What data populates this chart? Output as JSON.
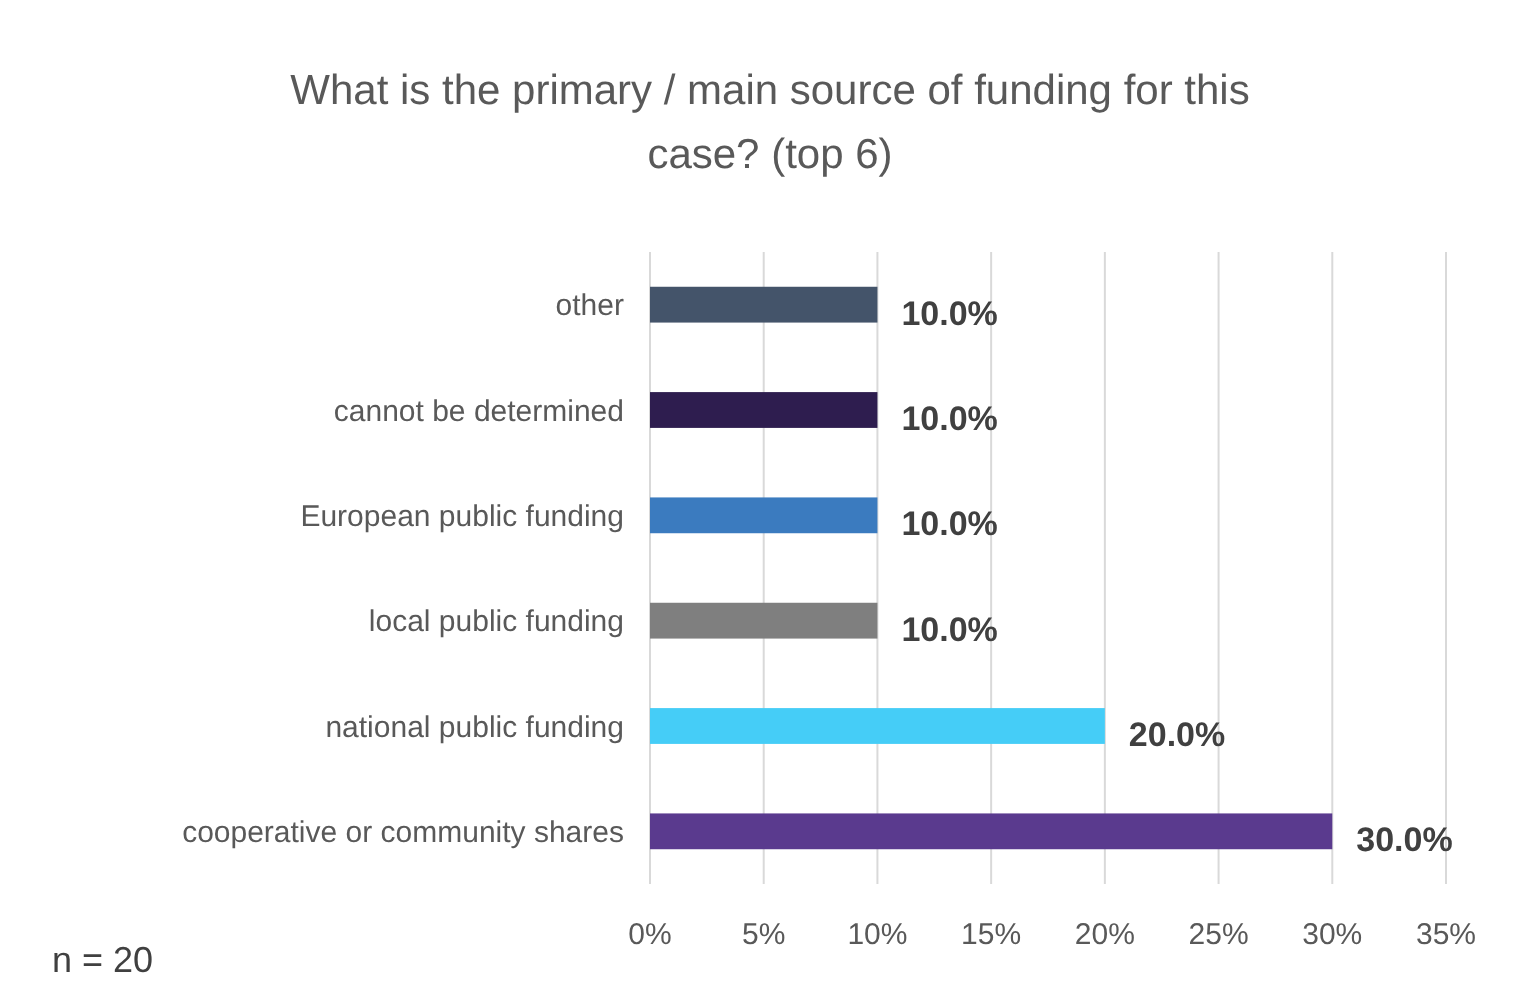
{
  "chart_data": {
    "type": "bar",
    "orientation": "horizontal",
    "title": "What is the primary / main source of funding for this case? (top 6)",
    "categories": [
      "other",
      "cannot be determined",
      "European public funding",
      "local public funding",
      "national public funding",
      "cooperative or community shares"
    ],
    "values": [
      10,
      10,
      10,
      10,
      20,
      30
    ],
    "colors": [
      "#44546a",
      "#2e1d4f",
      "#3b7bbf",
      "#7f7f7f",
      "#45cdf7",
      "#5a3a8e"
    ],
    "value_labels": [
      "10.0%",
      "10.0%",
      "10.0%",
      "10.0%",
      "20.0%",
      "30.0%"
    ],
    "xlim": [
      0,
      35
    ],
    "xticks": [
      {
        "value": 0,
        "label": "0%"
      },
      {
        "value": 5,
        "label": "5%"
      },
      {
        "value": 10,
        "label": "10%"
      },
      {
        "value": 15,
        "label": "15%"
      },
      {
        "value": 20,
        "label": "20%"
      },
      {
        "value": 25,
        "label": "25%"
      },
      {
        "value": 30,
        "label": "30%"
      },
      {
        "value": 35,
        "label": "35%"
      }
    ],
    "grid": "x",
    "annotations": [
      "n = 20"
    ]
  }
}
